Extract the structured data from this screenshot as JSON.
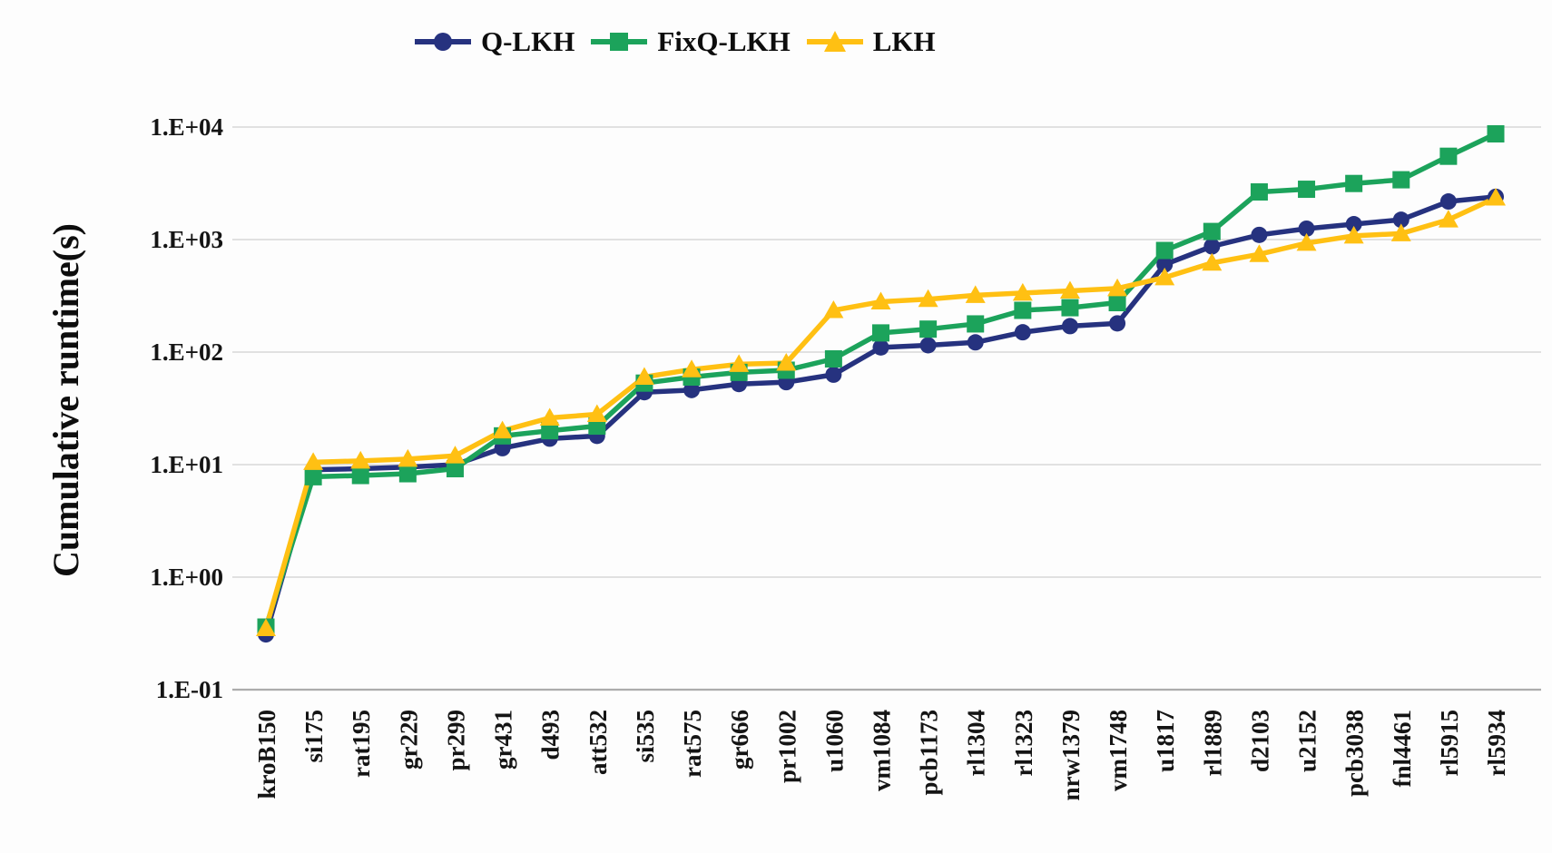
{
  "chart_data": {
    "type": "line",
    "title": "",
    "xlabel": "",
    "ylabel": "Cumulative runtime(s)",
    "y_scale": "log",
    "ylim": [
      0.1,
      10000
    ],
    "grid": true,
    "legend_position": "top",
    "y_ticks": [
      {
        "label": "1.E+04",
        "value": 10000
      },
      {
        "label": "1.E+03",
        "value": 1000
      },
      {
        "label": "1.E+02",
        "value": 100
      },
      {
        "label": "1.E+01",
        "value": 10
      },
      {
        "label": "1.E+00",
        "value": 1
      },
      {
        "label": "1.E-01",
        "value": 0.1
      }
    ],
    "categories": [
      "kroB150",
      "si175",
      "rat195",
      "gr229",
      "pr299",
      "gr431",
      "d493",
      "att532",
      "si535",
      "rat575",
      "gr666",
      "pr1002",
      "u1060",
      "vm1084",
      "pcb1173",
      "rl1304",
      "rl1323",
      "nrw1379",
      "vm1748",
      "u1817",
      "rl1889",
      "d2103",
      "u2152",
      "pcb3038",
      "fnl4461",
      "rl5915",
      "rl5934"
    ],
    "series": [
      {
        "name": "Q-LKH",
        "color": "#26327F",
        "marker": "circle",
        "values": [
          0.31,
          9.0,
          9.2,
          9.5,
          10,
          14,
          17,
          18,
          44,
          46,
          52,
          54,
          63,
          110,
          115,
          122,
          150,
          170,
          180,
          600,
          870,
          1100,
          1250,
          1370,
          1500,
          2180,
          2400
        ]
      },
      {
        "name": "FixQ-LKH",
        "color": "#1CA35B",
        "marker": "square",
        "values": [
          0.36,
          7.8,
          8.0,
          8.3,
          9.2,
          18,
          20,
          22,
          53,
          60,
          66,
          69,
          87,
          148,
          160,
          178,
          235,
          248,
          275,
          800,
          1180,
          2650,
          2800,
          3150,
          3400,
          5500,
          8700
        ]
      },
      {
        "name": "LKH",
        "color": "#FFC013",
        "marker": "triangle",
        "values": [
          0.35,
          10.5,
          10.8,
          11.2,
          12,
          20,
          26,
          28,
          60,
          70,
          78,
          80,
          235,
          280,
          295,
          320,
          335,
          350,
          368,
          460,
          620,
          740,
          930,
          1080,
          1130,
          1500,
          2350
        ]
      }
    ],
    "colors": {
      "gridline": "#D8D8D8",
      "axis_line": "#ACACAC",
      "text": "#141414"
    }
  }
}
